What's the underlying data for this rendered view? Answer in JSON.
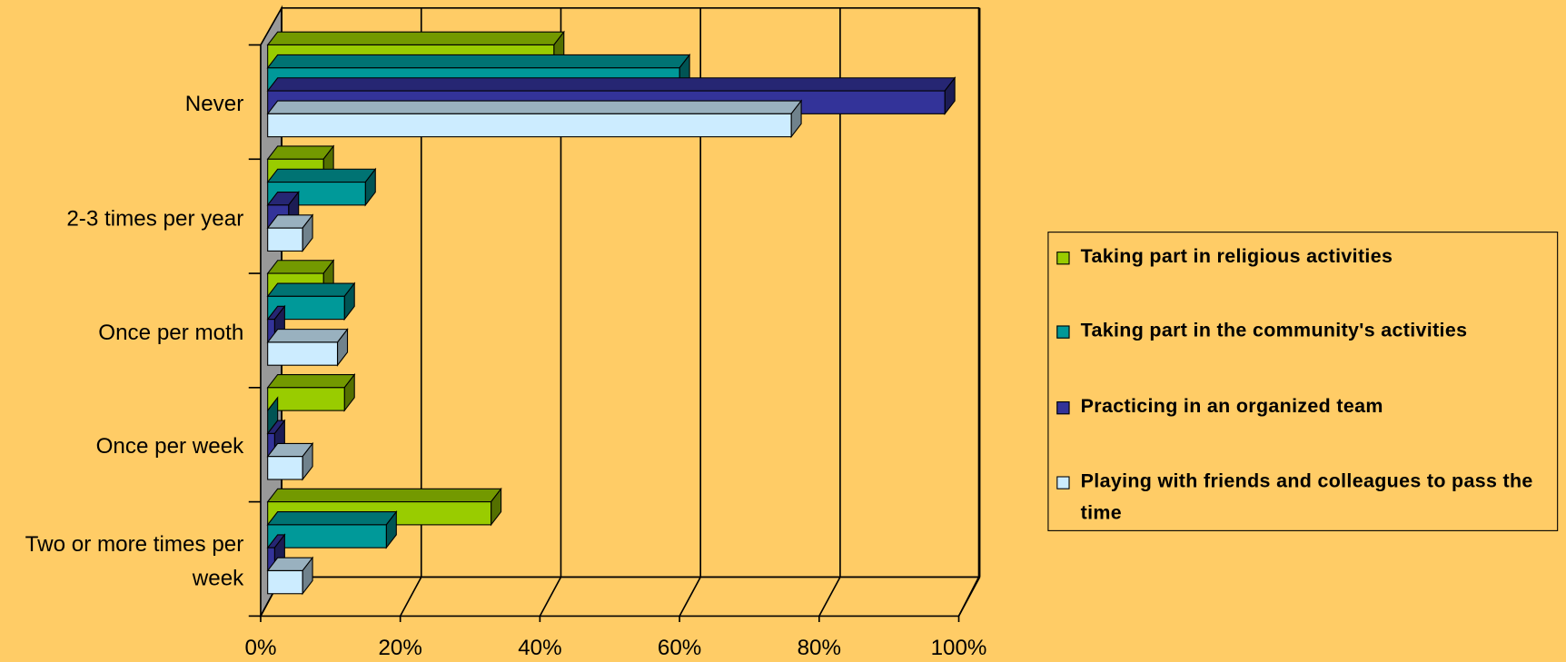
{
  "chart_data": {
    "type": "bar3d",
    "categories": [
      "Never",
      "2-3 times per year",
      "Once per moth",
      "Once per week",
      "Two or more times per week"
    ],
    "series": [
      {
        "name": "Taking part in religious activities",
        "color": "#99cc00",
        "values": [
          41,
          8,
          8,
          11,
          32
        ]
      },
      {
        "name": "Taking part in the community's activities",
        "color": "#009999",
        "values": [
          59,
          14,
          11,
          0,
          17
        ]
      },
      {
        "name": "Practicing in an organized team",
        "color": "#333399",
        "values": [
          97,
          3,
          1,
          1,
          1
        ]
      },
      {
        "name": "Playing with friends and colleagues to pass the time",
        "color": "#ccecff",
        "values": [
          75,
          5,
          10,
          5,
          5
        ]
      }
    ],
    "xlim": [
      0,
      100
    ],
    "xticks": [
      {
        "value": 0,
        "label": "0%"
      },
      {
        "value": 20,
        "label": "20%"
      },
      {
        "value": 40,
        "label": "40%"
      },
      {
        "value": 60,
        "label": "60%"
      },
      {
        "value": 80,
        "label": "80%"
      },
      {
        "value": 100,
        "label": "100%"
      }
    ],
    "grid": true,
    "legend": "right"
  }
}
